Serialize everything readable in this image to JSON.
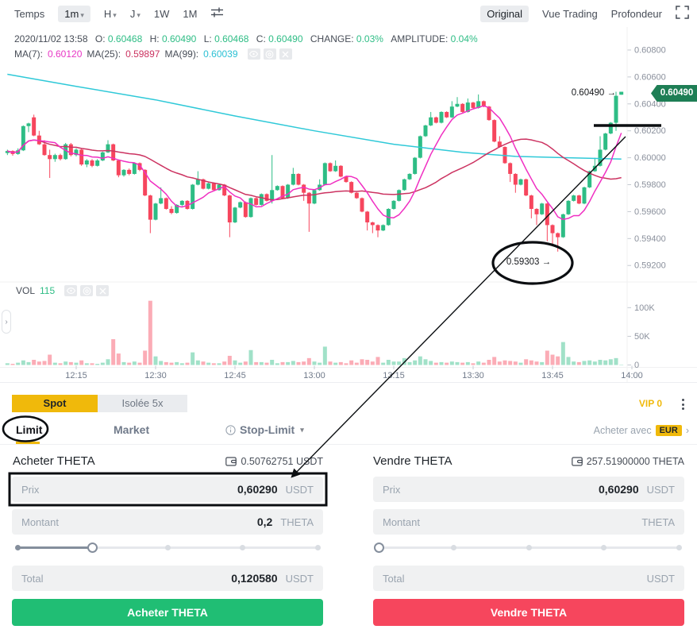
{
  "icons": {
    "caret": "▾",
    "chevron_right": "›",
    "arrow_right": "→",
    "expander": "›"
  },
  "toolbar": {
    "time_label": "Temps",
    "intervals": [
      {
        "label": "1m",
        "caret": true,
        "selected": true
      },
      {
        "label": "H",
        "caret": true
      },
      {
        "label": "J",
        "caret": true
      },
      {
        "label": "1W"
      },
      {
        "label": "1M"
      }
    ],
    "views": [
      {
        "label": "Original",
        "selected": true
      },
      {
        "label": "Vue Trading"
      },
      {
        "label": "Profondeur"
      }
    ]
  },
  "chart": {
    "info": {
      "datetime": "2020/11/02 13:58",
      "o_label": "O:",
      "o_value": "0.60468",
      "h_label": "H:",
      "h_value": "0.60490",
      "l_label": "L:",
      "l_value": "0.60468",
      "c_label": "C:",
      "c_value": "0.60490",
      "change_label": "CHANGE:",
      "change_value": "0.03%",
      "amplitude_label": "AMPLITUDE:",
      "amplitude_value": "0.04%"
    },
    "ma": {
      "ma7_label": "MA(7):",
      "ma7_value": "0.60120",
      "ma25_label": "MA(25):",
      "ma25_value": "0.59897",
      "ma99_label": "MA(99):",
      "ma99_value": "0.60039"
    },
    "vol_label": "VOL",
    "vol_value": "115",
    "price_tag": "0.60490",
    "annotations": {
      "high": "0.60490",
      "low": "0.59303"
    }
  },
  "chart_data": {
    "type": "candlestick",
    "timeframe": "1m",
    "price_axis": {
      "min": 0.59107,
      "max": 0.60847
    },
    "volume_axis": {
      "max": 124
    },
    "price_ticks": [
      "0.60800",
      "0.60600",
      "0.60400",
      "0.60200",
      "0.60000",
      "0.59800",
      "0.59600",
      "0.59400",
      "0.59200"
    ],
    "volume_ticks": [
      {
        "v": 100,
        "label": "100K"
      },
      {
        "v": 50,
        "label": "50K"
      },
      {
        "v": 0,
        "label": "0"
      }
    ],
    "time_ticks": [
      {
        "m": 15,
        "label": "12:15"
      },
      {
        "m": 30,
        "label": "12:30"
      },
      {
        "m": 45,
        "label": "12:45"
      },
      {
        "m": 60,
        "label": "13:00"
      },
      {
        "m": 75,
        "label": "13:15"
      },
      {
        "m": 90,
        "label": "13:30"
      },
      {
        "m": 105,
        "label": "13:45"
      },
      {
        "m": 120,
        "label": "14:00"
      }
    ],
    "ma99_points": [
      [
        2,
        0.6062
      ],
      [
        15,
        0.6053
      ],
      [
        30,
        0.6043
      ],
      [
        45,
        0.6031
      ],
      [
        60,
        0.602
      ],
      [
        75,
        0.601
      ],
      [
        88,
        0.6004
      ],
      [
        98,
        0.6001
      ],
      [
        108,
        0.6
      ],
      [
        118,
        0.5999
      ]
    ],
    "candles": [
      [
        2,
        0.60035,
        0.6006,
        0.6002,
        0.6005,
        3
      ],
      [
        3,
        0.6005,
        0.60055,
        0.60015,
        0.60028,
        2
      ],
      [
        4,
        0.60028,
        0.6007,
        0.60022,
        0.60055,
        4
      ],
      [
        5,
        0.60055,
        0.6024,
        0.6005,
        0.60235,
        8
      ],
      [
        6,
        0.60235,
        0.6026,
        0.6019,
        0.60255,
        5
      ],
      [
        7,
        0.603,
        0.6032,
        0.6016,
        0.60165,
        9
      ],
      [
        8,
        0.60165,
        0.602,
        0.60095,
        0.601,
        6
      ],
      [
        9,
        0.601,
        0.6013,
        0.60015,
        0.6002,
        7
      ],
      [
        10,
        0.6002,
        0.6006,
        0.5985,
        0.5999,
        18
      ],
      [
        11,
        0.5999,
        0.6003,
        0.5997,
        0.6002,
        4
      ],
      [
        12,
        0.6002,
        0.6003,
        0.5998,
        0.5999,
        3
      ],
      [
        13,
        0.5999,
        0.6011,
        0.59985,
        0.601,
        6
      ],
      [
        14,
        0.601,
        0.6011,
        0.6001,
        0.6002,
        5
      ],
      [
        15,
        0.6002,
        0.6007,
        0.6001,
        0.6006,
        4
      ],
      [
        16,
        0.6006,
        0.60065,
        0.5994,
        0.5995,
        8
      ],
      [
        17,
        0.5995,
        0.5999,
        0.5993,
        0.5998,
        3
      ],
      [
        18,
        0.5998,
        0.5999,
        0.5993,
        0.5994,
        3
      ],
      [
        19,
        0.5994,
        0.5999,
        0.59935,
        0.5998,
        2
      ],
      [
        20,
        0.5998,
        0.60045,
        0.59975,
        0.6004,
        4
      ],
      [
        21,
        0.6004,
        0.6013,
        0.60035,
        0.601,
        10
      ],
      [
        22,
        0.601,
        0.60105,
        0.59975,
        0.5998,
        45
      ],
      [
        23,
        0.5998,
        0.59985,
        0.59855,
        0.5987,
        20
      ],
      [
        24,
        0.5987,
        0.59915,
        0.5986,
        0.5991,
        5
      ],
      [
        25,
        0.5991,
        0.5992,
        0.5987,
        0.5988,
        4
      ],
      [
        26,
        0.5988,
        0.59965,
        0.59875,
        0.5996,
        6
      ],
      [
        27,
        0.5996,
        0.59965,
        0.599,
        0.5991,
        4
      ],
      [
        28,
        0.5991,
        0.59915,
        0.59715,
        0.5972,
        25
      ],
      [
        29,
        0.5972,
        0.59725,
        0.5944,
        0.5954,
        112
      ],
      [
        30,
        0.5954,
        0.59665,
        0.59535,
        0.5966,
        15
      ],
      [
        31,
        0.5966,
        0.5978,
        0.59655,
        0.597,
        7
      ],
      [
        32,
        0.597,
        0.59705,
        0.59615,
        0.5962,
        5
      ],
      [
        33,
        0.5962,
        0.5964,
        0.5958,
        0.5959,
        4
      ],
      [
        34,
        0.5959,
        0.59655,
        0.59585,
        0.5965,
        5
      ],
      [
        35,
        0.5965,
        0.59685,
        0.5964,
        0.5968,
        3
      ],
      [
        36,
        0.5968,
        0.59685,
        0.59615,
        0.5962,
        4
      ],
      [
        37,
        0.5962,
        0.59805,
        0.59615,
        0.598,
        22
      ],
      [
        38,
        0.598,
        0.599,
        0.59795,
        0.5984,
        8
      ],
      [
        39,
        0.5984,
        0.59845,
        0.59765,
        0.5977,
        6
      ],
      [
        40,
        0.5977,
        0.59815,
        0.59765,
        0.5981,
        4
      ],
      [
        41,
        0.5981,
        0.59815,
        0.59755,
        0.5976,
        3
      ],
      [
        42,
        0.5976,
        0.59805,
        0.59755,
        0.598,
        3
      ],
      [
        43,
        0.598,
        0.59805,
        0.59715,
        0.5972,
        6
      ],
      [
        44,
        0.5972,
        0.59725,
        0.5941,
        0.5952,
        16
      ],
      [
        45,
        0.5952,
        0.59635,
        0.59515,
        0.5963,
        8
      ],
      [
        46,
        0.5963,
        0.59675,
        0.59625,
        0.5967,
        4
      ],
      [
        47,
        0.5967,
        0.59675,
        0.59555,
        0.5956,
        6
      ],
      [
        48,
        0.5956,
        0.59705,
        0.59555,
        0.597,
        26
      ],
      [
        49,
        0.597,
        0.59705,
        0.59645,
        0.5965,
        5
      ],
      [
        50,
        0.5965,
        0.59735,
        0.59645,
        0.5973,
        5
      ],
      [
        51,
        0.5973,
        0.59735,
        0.59675,
        0.5968,
        4
      ],
      [
        52,
        0.5968,
        0.6002,
        0.5966,
        0.5976,
        9
      ],
      [
        53,
        0.5976,
        0.59795,
        0.59755,
        0.5979,
        3
      ],
      [
        54,
        0.5979,
        0.59795,
        0.59695,
        0.597,
        5
      ],
      [
        55,
        0.597,
        0.59805,
        0.59695,
        0.598,
        5
      ],
      [
        56,
        0.598,
        0.59925,
        0.59795,
        0.5988,
        7
      ],
      [
        57,
        0.5988,
        0.59885,
        0.59795,
        0.598,
        5
      ],
      [
        58,
        0.598,
        0.59805,
        0.5968,
        0.5974,
        6
      ],
      [
        59,
        0.5974,
        0.59745,
        0.5945,
        0.5966,
        12
      ],
      [
        60,
        0.5966,
        0.59765,
        0.59655,
        0.5976,
        6
      ],
      [
        61,
        0.5976,
        0.5984,
        0.59755,
        0.598,
        4
      ],
      [
        62,
        0.598,
        0.59965,
        0.59795,
        0.5996,
        32
      ],
      [
        63,
        0.5996,
        0.59965,
        0.59895,
        0.599,
        6
      ],
      [
        64,
        0.599,
        0.5998,
        0.59895,
        0.5994,
        4
      ],
      [
        65,
        0.5994,
        0.59945,
        0.59855,
        0.5986,
        5
      ],
      [
        66,
        0.5986,
        0.59865,
        0.59815,
        0.5982,
        3
      ],
      [
        67,
        0.5982,
        0.59825,
        0.59735,
        0.5974,
        8
      ],
      [
        68,
        0.5974,
        0.59745,
        0.59695,
        0.597,
        4
      ],
      [
        69,
        0.597,
        0.59705,
        0.59595,
        0.596,
        10
      ],
      [
        70,
        0.596,
        0.59605,
        0.5946,
        0.5952,
        9
      ],
      [
        71,
        0.5952,
        0.59525,
        0.5944,
        0.595,
        6
      ],
      [
        72,
        0.595,
        0.59505,
        0.5941,
        0.5946,
        14
      ],
      [
        73,
        0.5946,
        0.59505,
        0.59455,
        0.595,
        4
      ],
      [
        74,
        0.595,
        0.59625,
        0.59495,
        0.5962,
        9
      ],
      [
        75,
        0.5962,
        0.59685,
        0.59615,
        0.5968,
        6
      ],
      [
        76,
        0.5968,
        0.59765,
        0.59675,
        0.5976,
        6
      ],
      [
        77,
        0.5976,
        0.59845,
        0.59755,
        0.5984,
        12
      ],
      [
        78,
        0.5984,
        0.59885,
        0.59835,
        0.5988,
        5
      ],
      [
        79,
        0.5988,
        0.60005,
        0.59875,
        0.6,
        8
      ],
      [
        80,
        0.6,
        0.60165,
        0.59995,
        0.6016,
        15
      ],
      [
        81,
        0.6016,
        0.60245,
        0.60155,
        0.6024,
        10
      ],
      [
        82,
        0.6024,
        0.6034,
        0.60235,
        0.603,
        7
      ],
      [
        83,
        0.603,
        0.60305,
        0.60255,
        0.6026,
        4
      ],
      [
        84,
        0.6026,
        0.60345,
        0.60255,
        0.6034,
        5
      ],
      [
        85,
        0.6034,
        0.60345,
        0.60295,
        0.603,
        4
      ],
      [
        86,
        0.603,
        0.6042,
        0.60295,
        0.6038,
        6
      ],
      [
        87,
        0.6038,
        0.6045,
        0.60375,
        0.604,
        5
      ],
      [
        88,
        0.604,
        0.60405,
        0.60335,
        0.6034,
        4
      ],
      [
        89,
        0.6034,
        0.6044,
        0.60335,
        0.6041,
        5
      ],
      [
        90,
        0.6041,
        0.60415,
        0.60365,
        0.6037,
        3
      ],
      [
        91,
        0.6037,
        0.6047,
        0.60365,
        0.6042,
        6
      ],
      [
        92,
        0.6042,
        0.60425,
        0.60375,
        0.6038,
        4
      ],
      [
        93,
        0.6038,
        0.60385,
        0.60275,
        0.6028,
        9
      ],
      [
        94,
        0.6028,
        0.60285,
        0.60115,
        0.6012,
        14
      ],
      [
        95,
        0.6012,
        0.6016,
        0.60075,
        0.6008,
        6
      ],
      [
        96,
        0.6008,
        0.60085,
        0.59955,
        0.5996,
        8
      ],
      [
        97,
        0.5996,
        0.59965,
        0.5982,
        0.5988,
        7
      ],
      [
        98,
        0.5988,
        0.59885,
        0.5974,
        0.598,
        6
      ],
      [
        99,
        0.598,
        0.59845,
        0.59795,
        0.5984,
        4
      ],
      [
        100,
        0.5984,
        0.59845,
        0.59715,
        0.5972,
        10
      ],
      [
        101,
        0.5972,
        0.59725,
        0.5955,
        0.5962,
        8
      ],
      [
        102,
        0.5962,
        0.59625,
        0.595,
        0.5958,
        6
      ],
      [
        103,
        0.5958,
        0.59665,
        0.59575,
        0.5966,
        5
      ],
      [
        104,
        0.5966,
        0.59665,
        0.5938,
        0.595,
        25
      ],
      [
        105,
        0.595,
        0.59505,
        0.5935,
        0.5944,
        18
      ],
      [
        106,
        0.5944,
        0.59445,
        0.59303,
        0.5941,
        15
      ],
      [
        107,
        0.5941,
        0.59585,
        0.59405,
        0.5958,
        40
      ],
      [
        108,
        0.5958,
        0.59685,
        0.59575,
        0.5968,
        14
      ],
      [
        109,
        0.5968,
        0.59725,
        0.59675,
        0.5972,
        6
      ],
      [
        110,
        0.5972,
        0.59725,
        0.59655,
        0.5966,
        5
      ],
      [
        111,
        0.5966,
        0.59785,
        0.59655,
        0.5978,
        7
      ],
      [
        112,
        0.5978,
        0.59905,
        0.59775,
        0.599,
        8
      ],
      [
        113,
        0.599,
        0.6,
        0.59895,
        0.5994,
        6
      ],
      [
        114,
        0.5994,
        0.6016,
        0.59935,
        0.6006,
        9
      ],
      [
        115,
        0.6006,
        0.60185,
        0.60055,
        0.6018,
        8
      ],
      [
        116,
        0.6018,
        0.60265,
        0.60175,
        0.6026,
        10
      ],
      [
        117,
        0.6026,
        0.6049,
        0.602,
        0.6046,
        12
      ],
      [
        118,
        0.60468,
        0.6049,
        0.60468,
        0.6049,
        0.115
      ]
    ],
    "colors": {
      "up": "#2EBD85",
      "down": "#F6465D",
      "ma7": "#F02FC2",
      "ma25": "#CC3361",
      "ma99": "#2FC9D8"
    }
  },
  "trade": {
    "mode_tabs": [
      {
        "label": "Spot"
      },
      {
        "label": "Isolée 5x"
      }
    ],
    "vip": "VIP 0",
    "order_tabs": {
      "limit": "Limit",
      "market": "Market",
      "stop_limit": "Stop-Limit"
    },
    "buy_with": {
      "label": "Acheter avec",
      "currency": "EUR"
    },
    "buy": {
      "title": "Acheter THETA",
      "balance": "0.50762751 USDT",
      "price_label": "Prix",
      "price_value": "0,60290",
      "price_unit": "USDT",
      "amount_label": "Montant",
      "amount_value": "0,2",
      "amount_unit": "THETA",
      "slider_percent": 25,
      "total_label": "Total",
      "total_value": "0,120580",
      "total_unit": "USDT",
      "button": "Acheter THETA"
    },
    "sell": {
      "title": "Vendre THETA",
      "balance": "257.51900000 THETA",
      "price_label": "Prix",
      "price_value": "0,60290",
      "price_unit": "USDT",
      "amount_label": "Montant",
      "amount_value": "",
      "amount_unit": "THETA",
      "slider_percent": 0,
      "total_label": "Total",
      "total_value": "",
      "total_unit": "USDT",
      "button": "Vendre THETA"
    }
  }
}
